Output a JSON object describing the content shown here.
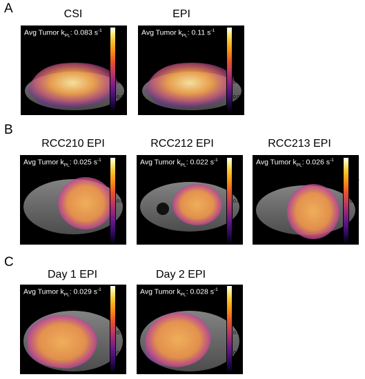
{
  "panels": {
    "A": {
      "letter": "A",
      "items": [
        {
          "title": "CSI",
          "avg_prefix": "Avg Tumor k",
          "avg_sub": "PL",
          "avg_value": ": 0.083 s",
          "avg_sup": "-1",
          "ticks": [
            "0.1",
            "0.08",
            "0.06",
            "0.04",
            "0.02",
            "0"
          ]
        },
        {
          "title": "EPI",
          "avg_prefix": "Avg Tumor k",
          "avg_sub": "PL",
          "avg_value": ": 0.11 s",
          "avg_sup": "-1",
          "ticks": [
            "0.1",
            "0.08",
            "0.06",
            "0.04",
            "0.02",
            "0"
          ]
        }
      ]
    },
    "B": {
      "letter": "B",
      "items": [
        {
          "title": "RCC210 EPI",
          "avg_prefix": "Avg Tumor k",
          "avg_sub": "PL",
          "avg_value": ": 0.025 s",
          "avg_sup": "-1",
          "ticks": [
            "0.04",
            "0.03",
            "0.02",
            "0.01",
            "0"
          ]
        },
        {
          "title": "RCC212 EPI",
          "avg_prefix": "Avg Tumor k",
          "avg_sub": "PL",
          "avg_value": ": 0.022 s",
          "avg_sup": "-1",
          "ticks": [
            "0.04",
            "0.03",
            "0.02",
            "0.01",
            "0"
          ]
        },
        {
          "title": "RCC213 EPI",
          "avg_prefix": "Avg Tumor k",
          "avg_sub": "PL",
          "avg_value": ": 0.026 s",
          "avg_sup": "-1",
          "ticks": [
            "0.04",
            "0.03",
            "0.02",
            "0.01",
            "0"
          ]
        }
      ]
    },
    "C": {
      "letter": "C",
      "items": [
        {
          "title": "Day 1 EPI",
          "avg_prefix": "Avg Tumor k",
          "avg_sub": "PL",
          "avg_value": ": 0.029 s",
          "avg_sup": "-1",
          "ticks": [
            "0.04",
            "0.03",
            "0.02",
            "0.01",
            "0"
          ]
        },
        {
          "title": "Day 2 EPI",
          "avg_prefix": "Avg Tumor k",
          "avg_sub": "PL",
          "avg_value": ": 0.028 s",
          "avg_sup": "-1",
          "ticks": [
            "0.04",
            "0.03",
            "0.02",
            "0.01",
            "0"
          ]
        }
      ]
    }
  }
}
